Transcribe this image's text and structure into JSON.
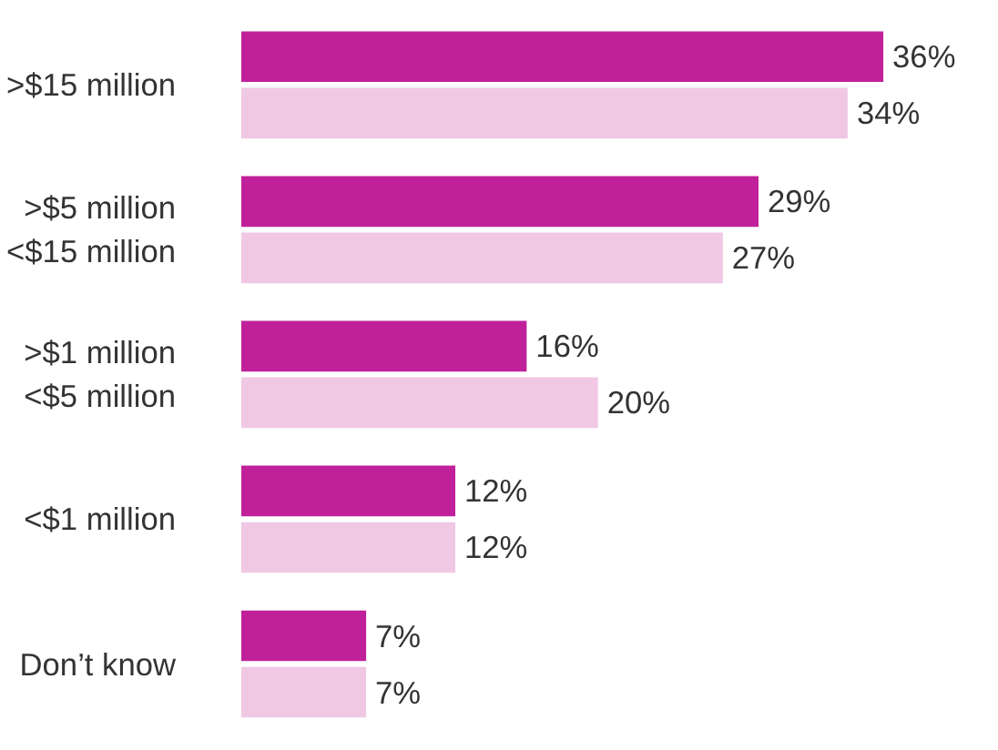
{
  "chart_data": {
    "type": "bar",
    "orientation": "horizontal",
    "categories": [
      ">$15 million",
      ">$5 million\n<$15 million",
      ">$1 million\n<$5 million",
      "<$1 million",
      "Don’t know"
    ],
    "series": [
      {
        "color": "#c0219a",
        "values": [
          36,
          29,
          16,
          12,
          7
        ],
        "value_labels": [
          "36%",
          "29%",
          "16%",
          "12%",
          "7%"
        ]
      },
      {
        "color": "#f0c8e4",
        "values": [
          34,
          27,
          20,
          12,
          7
        ],
        "value_labels": [
          "34%",
          "27%",
          "20%",
          "12%",
          "7%"
        ]
      }
    ],
    "grid": false
  }
}
